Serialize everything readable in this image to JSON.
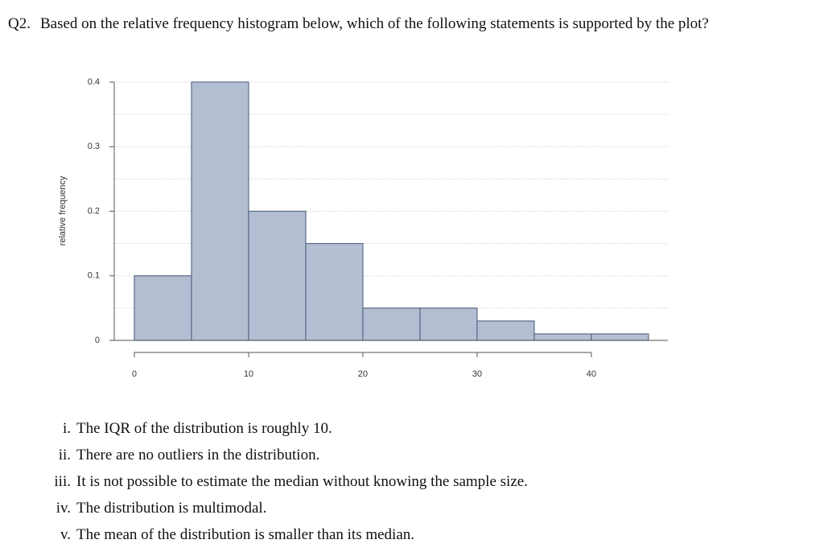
{
  "question": {
    "number": "Q2.",
    "text": "Based on the relative frequency histogram below, which of the following statements is supported by the plot?"
  },
  "chart_data": {
    "type": "histogram",
    "ylabel": "relative frequency",
    "bins": [
      0,
      5,
      10,
      15,
      20,
      25,
      30,
      35,
      40,
      45
    ],
    "values": [
      0.1,
      0.4,
      0.2,
      0.15,
      0.05,
      0.05,
      0.03,
      0.01,
      0.01
    ],
    "color": "#b4bed2",
    "edge_color": "#5b6b88",
    "xlim": [
      -1.9,
      46.7
    ],
    "ylim": [
      0,
      0.4
    ],
    "xticks": [
      0,
      10,
      20,
      30,
      40
    ],
    "yticks": [
      0,
      0.1,
      0.2,
      0.3,
      0.4
    ],
    "grid_lines": [
      0.05,
      0.1,
      0.15,
      0.2,
      0.25,
      0.3,
      0.35,
      0.4
    ]
  },
  "options": [
    {
      "numeral": "i.",
      "text": "The IQR of the distribution is roughly 10."
    },
    {
      "numeral": "ii.",
      "text": "There are no outliers in the distribution."
    },
    {
      "numeral": "iii.",
      "text": "It is not possible to estimate the median without knowing the sample size."
    },
    {
      "numeral": "iv.",
      "text": "The distribution is multimodal."
    },
    {
      "numeral": "v.",
      "text": "The mean of the distribution is smaller than its median."
    }
  ]
}
